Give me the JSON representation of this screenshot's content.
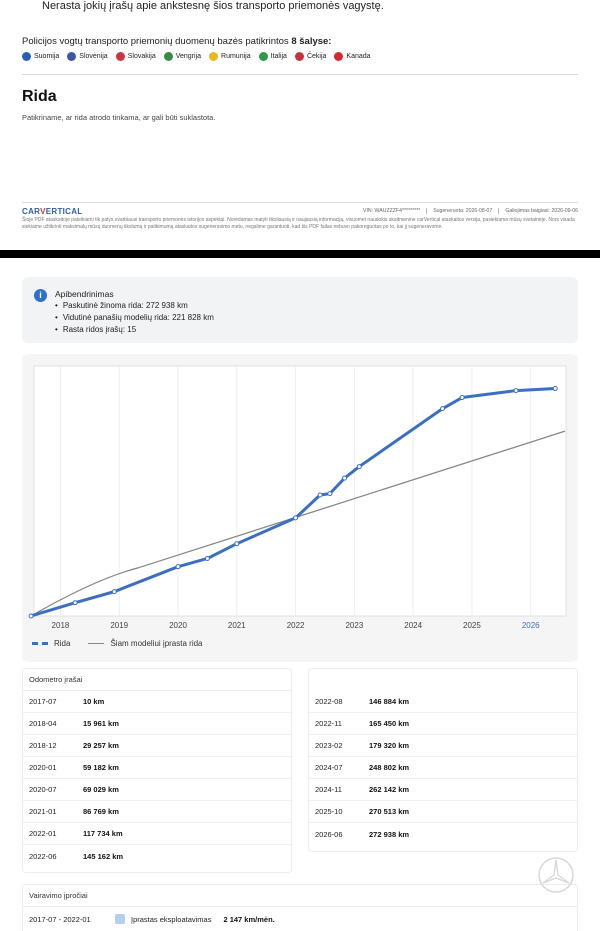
{
  "page1": {
    "top_text": "Nerasta jokių įrašų apie ankstesnę šios transporto priemonės vagystę.",
    "police_prefix": "Policijos vogtų transporto priemonių duomenų bazės patikrintos",
    "police_count": "8 šalyse:",
    "countries": [
      {
        "name": "Suomija",
        "color": "#2b5fb7"
      },
      {
        "name": "Slovėnija",
        "color": "#3b56a8"
      },
      {
        "name": "Slovakija",
        "color": "#cc3344"
      },
      {
        "name": "Vengrija",
        "color": "#3a8a46"
      },
      {
        "name": "Rumunija",
        "color": "#e8b91c"
      },
      {
        "name": "Italija",
        "color": "#2e9a4a"
      },
      {
        "name": "Čekija",
        "color": "#c8343c"
      },
      {
        "name": "Kanada",
        "color": "#d7282f"
      }
    ],
    "section_title": "Rida",
    "section_sub": "Patikriname, ar rida atrodo tinkama, ar gali būti suklastota.",
    "footer": {
      "logo_a": "CAR",
      "logo_v": "V",
      "logo_b": "ERTICAL",
      "vin": "VIN: WAUZZZF4*********",
      "generated": "Sugeneruota: 2026-08-07",
      "valid": "Galiojimas baigiasi: 2026-09-06",
      "note": "Šioje PDF ataskaitoje pateikiami tik patys svarbiausi transporto priemonės istorijos aspektai. Norėdamas matyti tiksliausią ir naujausią informaciją, visuomet naudokis skaitmenine carVertical ataskaitos versija, pasiekiama mūsų svetainėje. Nors visada siekiame užtikrinti maksimalų mūsų duomenų tikslumą ir patikimumą ataskaitos sugeneravimo metu, negalime garantuoti, kad šis PDF failas nebuvo pakoreguotas po to, kai jį sugeneravome."
    }
  },
  "summary": {
    "title": "Apibendrinimas",
    "items": [
      "Paskutinė žinoma rida: 272 938 km",
      "Vidutinė panašių modelių rida: 221 828 km",
      "Rasta ridos įrašų: 15"
    ]
  },
  "chart_data": {
    "type": "line",
    "x_ticks": [
      "2018",
      "2019",
      "2020",
      "2021",
      "2022",
      "2023",
      "2024",
      "2025",
      "2026"
    ],
    "xlim": [
      2017.55,
      2026.6
    ],
    "ylim": [
      0,
      300000
    ],
    "grid": true,
    "series": [
      {
        "name": "Rida",
        "style": "dashed",
        "color": "#3a6fc4",
        "points": [
          [
            "2017-07",
            10
          ],
          [
            "2018-04",
            15961
          ],
          [
            "2018-12",
            29257
          ],
          [
            "2020-01",
            59182
          ],
          [
            "2020-07",
            69029
          ],
          [
            "2021-01",
            86769
          ],
          [
            "2022-01",
            117734
          ],
          [
            "2022-06",
            145162
          ],
          [
            "2022-08",
            146884
          ],
          [
            "2022-11",
            165450
          ],
          [
            "2023-02",
            179320
          ],
          [
            "2024-07",
            248802
          ],
          [
            "2024-11",
            262142
          ],
          [
            "2025-10",
            270513
          ],
          [
            "2026-06",
            272938
          ]
        ]
      },
      {
        "name": "Šiam modeliui įprasta rida",
        "style": "solid",
        "color": "#888888",
        "points": [
          [
            "2017-07",
            0
          ],
          [
            "2026-08",
            221828
          ]
        ]
      }
    ],
    "legend": "bottom-left"
  },
  "odometer": {
    "title": "Odometro įrašai",
    "left": [
      {
        "date": "2017-07",
        "km": "10 km"
      },
      {
        "date": "2018-04",
        "km": "15 961 km"
      },
      {
        "date": "2018-12",
        "km": "29 257 km"
      },
      {
        "date": "2020-01",
        "km": "59 182 km"
      },
      {
        "date": "2020-07",
        "km": "69 029 km"
      },
      {
        "date": "2021-01",
        "km": "86 769 km"
      },
      {
        "date": "2022-01",
        "km": "117 734 km"
      },
      {
        "date": "2022-06",
        "km": "145 162 km"
      }
    ],
    "right": [
      {
        "date": "2022-08",
        "km": "146 884 km"
      },
      {
        "date": "2022-11",
        "km": "165 450 km"
      },
      {
        "date": "2023-02",
        "km": "179 320 km"
      },
      {
        "date": "2024-07",
        "km": "248 802 km"
      },
      {
        "date": "2024-11",
        "km": "262 142 km"
      },
      {
        "date": "2025-10",
        "km": "270 513 km"
      },
      {
        "date": "2026-06",
        "km": "272 938 km"
      }
    ]
  },
  "driving": {
    "title": "Vairavimo įpročiai",
    "period": "2017-07 - 2022-01",
    "type": "Įprastas eksploatavimas",
    "value": "2 147 km/mėn."
  }
}
